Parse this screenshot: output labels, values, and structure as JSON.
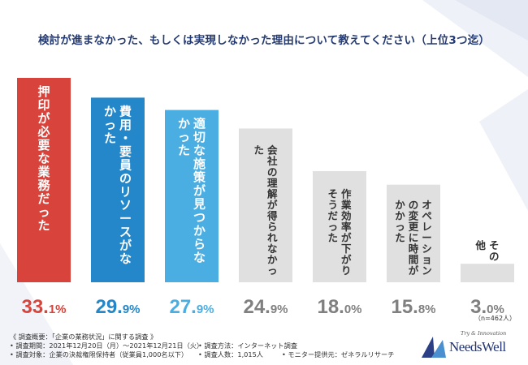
{
  "title": "検討が進まなかった、もしくは実現しなかった理由について教えてください（上位3つ迄）",
  "chart_data": {
    "type": "bar",
    "categories": [
      "押印が必要な業務だった",
      "費用・要員のリソースがなかった",
      "適切な施策が見つからなかった",
      "会社の理解が得られなかった",
      "作業効率が下がりそうだった",
      "オペレーションの変更に時間がかかった",
      "その他"
    ],
    "values": [
      33.1,
      29.9,
      27.9,
      24.9,
      18.0,
      15.8,
      3.0
    ],
    "value_labels": [
      {
        "int": "33.",
        "dec": "1%"
      },
      {
        "int": "29.",
        "dec": "9%"
      },
      {
        "int": "27.",
        "dec": "9%"
      },
      {
        "int": "24.",
        "dec": "9%"
      },
      {
        "int": "18.",
        "dec": "0%"
      },
      {
        "int": "15.",
        "dec": "8%"
      },
      {
        "int": "3.",
        "dec": "0%"
      }
    ],
    "colors": [
      "#d8443b",
      "#2387c9",
      "#4aaee3",
      "#e0e0e0",
      "#e0e0e0",
      "#e0e0e0",
      "#e0e0e0"
    ],
    "label_colors": [
      "#d8443b",
      "#2387c9",
      "#4aaee3",
      "#808080",
      "#808080",
      "#808080",
      "#808080"
    ],
    "ylim": [
      0,
      33.1
    ],
    "xlabel": "",
    "ylabel": ""
  },
  "note": "（n=462人）",
  "footer": {
    "line1": "《 調査概要：「企業の業務状況」に関する調査 》",
    "period": "• 調査期間：2021年12月20日（月）〜2021年12月21日（火）",
    "method": "• 調査方法：インターネット調査",
    "target": "• 調査対象：企業の決裁権限保持者（従業員1,000名以下）",
    "count": "• 調査人数：1,015人",
    "provider": "• モニター提供元：ゼネラルリサーチ"
  },
  "logo": {
    "tagline": "Try & Innovation",
    "name": "NeedsWell"
  }
}
